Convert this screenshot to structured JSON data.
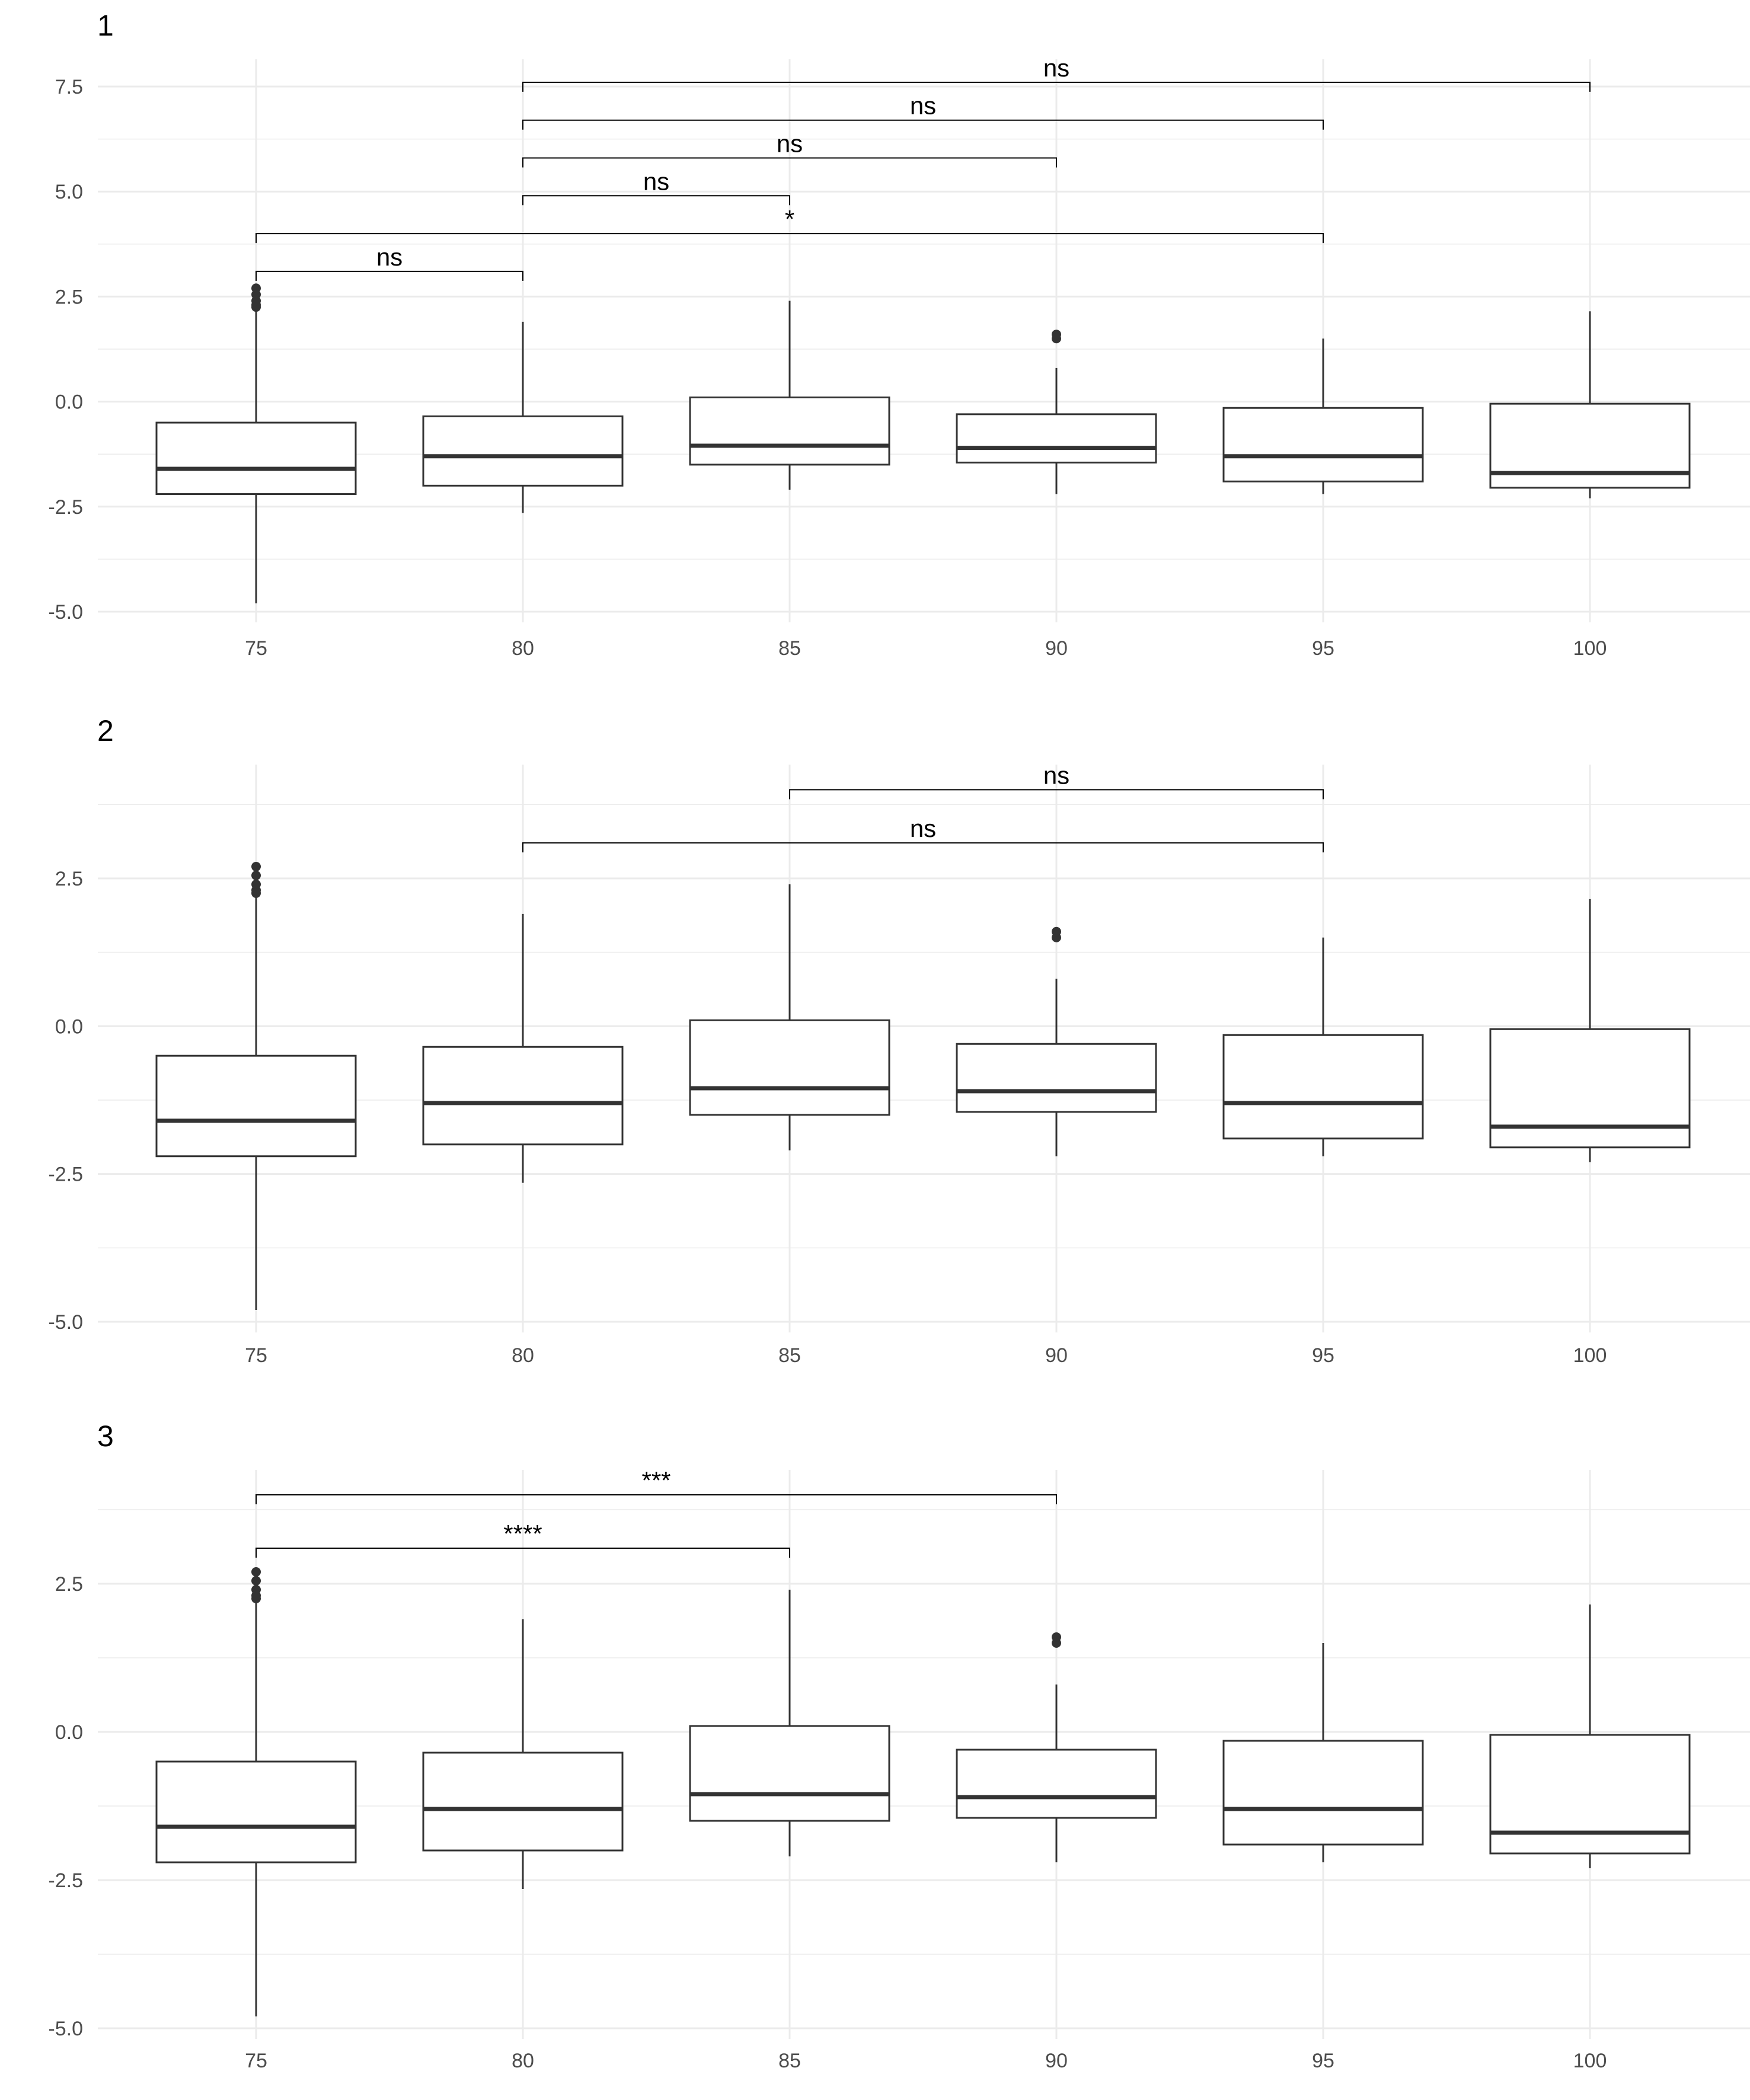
{
  "chart_data": [
    {
      "title": "1",
      "type": "box",
      "categories": [
        "75",
        "80",
        "85",
        "90",
        "95",
        "100"
      ],
      "y_ticks": [
        "7.5",
        "5.0",
        "2.5",
        "0.0",
        "-2.5",
        "-5.0"
      ],
      "ylim": [
        -5.0,
        7.5
      ],
      "grid": true,
      "boxes": [
        {
          "category": "75",
          "lower_whisker": -4.8,
          "q1": -2.2,
          "median": -1.6,
          "q3": -0.5,
          "upper_whisker": 2.2,
          "outliers": [
            2.25,
            2.3,
            2.4,
            2.55,
            2.7
          ]
        },
        {
          "category": "80",
          "lower_whisker": -2.65,
          "q1": -2.0,
          "median": -1.3,
          "q3": -0.35,
          "upper_whisker": 1.9,
          "outliers": []
        },
        {
          "category": "85",
          "lower_whisker": -2.1,
          "q1": -1.5,
          "median": -1.05,
          "q3": 0.1,
          "upper_whisker": 2.4,
          "outliers": []
        },
        {
          "category": "90",
          "lower_whisker": -2.2,
          "q1": -1.45,
          "median": -1.1,
          "q3": -0.3,
          "upper_whisker": 0.8,
          "outliers": [
            1.5,
            1.6
          ]
        },
        {
          "category": "95",
          "lower_whisker": -2.2,
          "q1": -1.9,
          "median": -1.3,
          "q3": -0.15,
          "upper_whisker": 1.5,
          "outliers": []
        },
        {
          "category": "100",
          "lower_whisker": -2.3,
          "q1": -2.05,
          "median": -1.7,
          "q3": -0.05,
          "upper_whisker": 2.15,
          "outliers": []
        }
      ],
      "comparisons": [
        {
          "from": "80",
          "to": "100",
          "label": "ns",
          "bracket_y": 7.6
        },
        {
          "from": "80",
          "to": "95",
          "label": "ns",
          "bracket_y": 6.7
        },
        {
          "from": "80",
          "to": "90",
          "label": "ns",
          "bracket_y": 5.8
        },
        {
          "from": "80",
          "to": "85",
          "label": "ns",
          "bracket_y": 4.9
        },
        {
          "from": "75",
          "to": "95",
          "label": "*",
          "bracket_y": 4.0
        },
        {
          "from": "75",
          "to": "80",
          "label": "ns",
          "bracket_y": 3.1
        }
      ]
    },
    {
      "title": "2",
      "type": "box",
      "categories": [
        "75",
        "80",
        "85",
        "90",
        "95",
        "100"
      ],
      "y_ticks": [
        "2.5",
        "0.0",
        "-2.5",
        "-5.0"
      ],
      "ylim": [
        -5.0,
        3.5
      ],
      "grid": true,
      "boxes": [
        {
          "category": "75",
          "lower_whisker": -4.8,
          "q1": -2.2,
          "median": -1.6,
          "q3": -0.5,
          "upper_whisker": 2.2,
          "outliers": [
            2.25,
            2.3,
            2.4,
            2.55,
            2.7
          ]
        },
        {
          "category": "80",
          "lower_whisker": -2.65,
          "q1": -2.0,
          "median": -1.3,
          "q3": -0.35,
          "upper_whisker": 1.9,
          "outliers": []
        },
        {
          "category": "85",
          "lower_whisker": -2.1,
          "q1": -1.5,
          "median": -1.05,
          "q3": 0.1,
          "upper_whisker": 2.4,
          "outliers": []
        },
        {
          "category": "90",
          "lower_whisker": -2.2,
          "q1": -1.45,
          "median": -1.1,
          "q3": -0.3,
          "upper_whisker": 0.8,
          "outliers": [
            1.5,
            1.6
          ]
        },
        {
          "category": "95",
          "lower_whisker": -2.2,
          "q1": -1.9,
          "median": -1.3,
          "q3": -0.15,
          "upper_whisker": 1.5,
          "outliers": []
        },
        {
          "category": "100",
          "lower_whisker": -2.3,
          "q1": -2.05,
          "median": -1.7,
          "q3": -0.05,
          "upper_whisker": 2.15,
          "outliers": []
        }
      ],
      "comparisons": [
        {
          "from": "85",
          "to": "95",
          "label": "ns",
          "bracket_y": 4.0
        },
        {
          "from": "80",
          "to": "95",
          "label": "ns",
          "bracket_y": 3.1
        }
      ]
    },
    {
      "title": "3",
      "type": "box",
      "categories": [
        "75",
        "80",
        "85",
        "90",
        "95",
        "100"
      ],
      "y_ticks": [
        "2.5",
        "0.0",
        "-2.5",
        "-5.0"
      ],
      "ylim": [
        -5.0,
        3.5
      ],
      "grid": true,
      "boxes": [
        {
          "category": "75",
          "lower_whisker": -4.8,
          "q1": -2.2,
          "median": -1.6,
          "q3": -0.5,
          "upper_whisker": 2.2,
          "outliers": [
            2.25,
            2.3,
            2.4,
            2.55,
            2.7
          ]
        },
        {
          "category": "80",
          "lower_whisker": -2.65,
          "q1": -2.0,
          "median": -1.3,
          "q3": -0.35,
          "upper_whisker": 1.9,
          "outliers": []
        },
        {
          "category": "85",
          "lower_whisker": -2.1,
          "q1": -1.5,
          "median": -1.05,
          "q3": 0.1,
          "upper_whisker": 2.4,
          "outliers": []
        },
        {
          "category": "90",
          "lower_whisker": -2.2,
          "q1": -1.45,
          "median": -1.1,
          "q3": -0.3,
          "upper_whisker": 0.8,
          "outliers": [
            1.5,
            1.6
          ]
        },
        {
          "category": "95",
          "lower_whisker": -2.2,
          "q1": -1.9,
          "median": -1.3,
          "q3": -0.15,
          "upper_whisker": 1.5,
          "outliers": []
        },
        {
          "category": "100",
          "lower_whisker": -2.3,
          "q1": -2.05,
          "median": -1.7,
          "q3": -0.05,
          "upper_whisker": 2.15,
          "outliers": []
        }
      ],
      "comparisons": [
        {
          "from": "75",
          "to": "90",
          "label": "***",
          "bracket_y": 4.0
        },
        {
          "from": "75",
          "to": "85",
          "label": "****",
          "bracket_y": 3.1
        }
      ]
    }
  ]
}
